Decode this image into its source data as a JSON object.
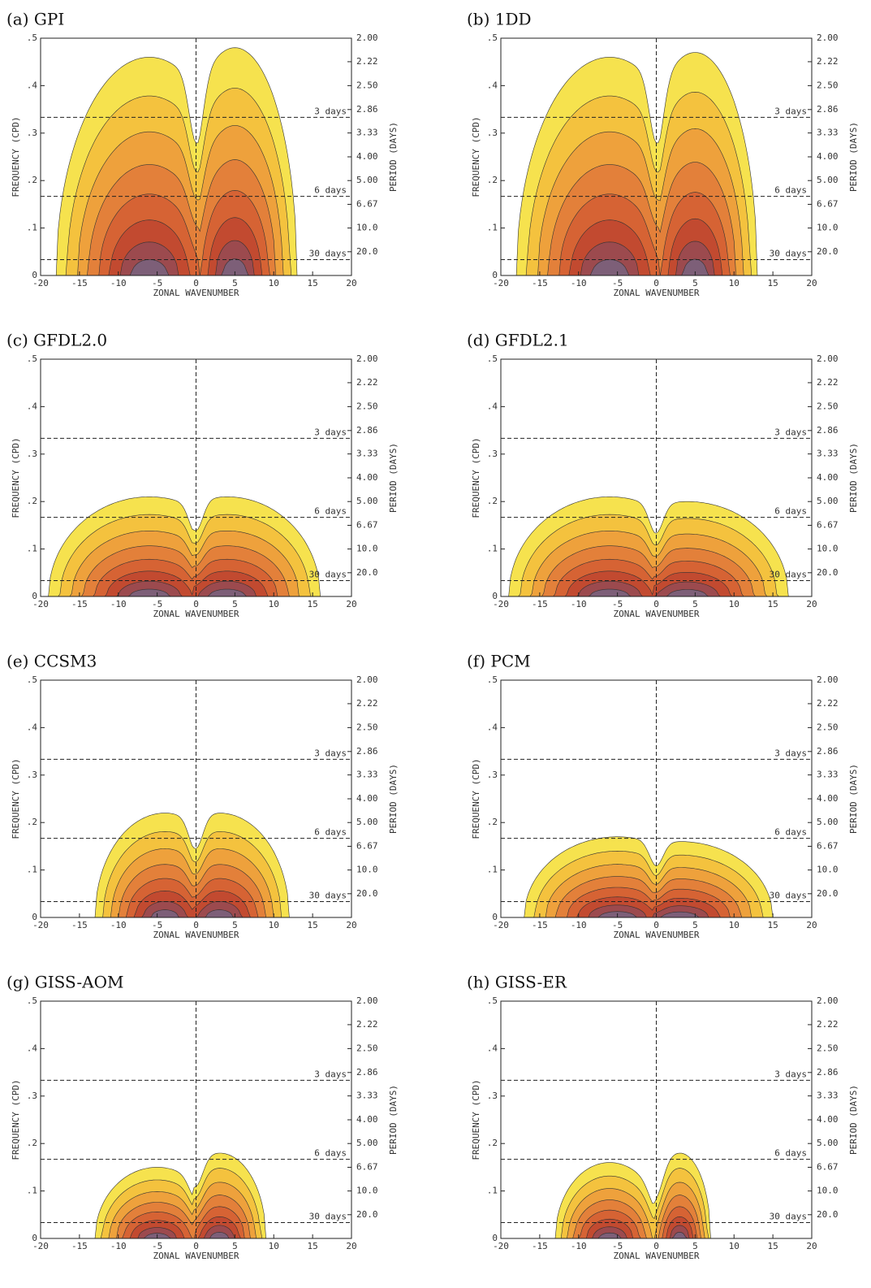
{
  "chart_data": [
    {
      "type": "contour",
      "title": "(a) GPI",
      "xlabel": "ZONAL WAVENUMBER",
      "ylabel": "FREQUENCY (CPD)",
      "y2label": "PERIOD (DAYS)",
      "xlim": [
        -20,
        20
      ],
      "xticks": [
        -20,
        -15,
        -10,
        -5,
        0,
        5,
        10,
        15,
        20
      ],
      "ylim": [
        0,
        0.5
      ],
      "yticks": [
        0,
        {
          "value": 0.1,
          "label": ".1"
        },
        {
          "value": 0.2,
          "label": ".2"
        },
        {
          "value": 0.3,
          "label": ".3"
        },
        {
          "value": 0.4,
          "label": ".4"
        },
        {
          "value": 0.5,
          "label": ".5"
        }
      ],
      "y2scale": "reciprocal",
      "y2ticks": [
        {
          "value": 2,
          "label": "2.00"
        },
        2.22,
        {
          "value": 2.5,
          "label": "2.50"
        },
        2.86,
        3.33,
        {
          "value": 4,
          "label": "4.00"
        },
        {
          "value": 5,
          "label": "5.00"
        },
        6.67,
        {
          "value": 10,
          "label": "10.0"
        },
        {
          "value": 20,
          "label": "20.0"
        }
      ],
      "hlines": [
        {
          "value": 3,
          "label": "3 days"
        },
        {
          "value": 6,
          "label": "6 days"
        },
        {
          "value": 30,
          "label": "30 days"
        }
      ],
      "vline": 0,
      "colors": [
        "#f6e24e",
        "#f4c23e",
        "#eea13c",
        "#e3803a",
        "#d66334",
        "#c24a30",
        "#9c4a4e",
        "#7d5f78"
      ]
    },
    {
      "type": "contour",
      "title": "(b) 1DD",
      "xlabel": "ZONAL WAVENUMBER",
      "ylabel": "FREQUENCY (CPD)",
      "y2label": "PERIOD (DAYS)",
      "xlim": [
        -20,
        20
      ],
      "xticks": [
        -20,
        -15,
        -10,
        -5,
        0,
        5,
        10,
        15,
        20
      ],
      "ylim": [
        0,
        0.5
      ],
      "yticks": [
        0,
        {
          "value": 0.1,
          "label": ".1"
        },
        {
          "value": 0.2,
          "label": ".2"
        },
        {
          "value": 0.3,
          "label": ".3"
        },
        {
          "value": 0.4,
          "label": ".4"
        },
        {
          "value": 0.5,
          "label": ".5"
        }
      ],
      "y2scale": "reciprocal",
      "y2ticks": [
        {
          "value": 2,
          "label": "2.00"
        },
        2.22,
        {
          "value": 2.5,
          "label": "2.50"
        },
        2.86,
        3.33,
        {
          "value": 4,
          "label": "4.00"
        },
        {
          "value": 5,
          "label": "5.00"
        },
        6.67,
        {
          "value": 10,
          "label": "10.0"
        },
        {
          "value": 20,
          "label": "20.0"
        }
      ],
      "hlines": [
        {
          "value": 3,
          "label": "3 days"
        },
        {
          "value": 6,
          "label": "6 days"
        },
        {
          "value": 30,
          "label": "30 days"
        }
      ],
      "vline": 0,
      "colors": [
        "#f6e24e",
        "#f4c23e",
        "#eea13c",
        "#e3803a",
        "#d66334",
        "#c24a30",
        "#9c4a4e",
        "#7d5f78"
      ]
    },
    {
      "type": "contour",
      "title": "(c) GFDL2.0",
      "xlabel": "ZONAL WAVENUMBER",
      "ylabel": "FREQUENCY (CPD)",
      "y2label": "PERIOD (DAYS)",
      "xlim": [
        -20,
        20
      ],
      "xticks": [
        -20,
        -15,
        -10,
        -5,
        0,
        5,
        10,
        15,
        20
      ],
      "ylim": [
        0,
        0.5
      ],
      "yticks": [
        0,
        {
          "value": 0.1,
          "label": ".1"
        },
        {
          "value": 0.2,
          "label": ".2"
        },
        {
          "value": 0.3,
          "label": ".3"
        },
        {
          "value": 0.4,
          "label": ".4"
        },
        {
          "value": 0.5,
          "label": ".5"
        }
      ],
      "y2scale": "reciprocal",
      "y2ticks": [
        {
          "value": 2,
          "label": "2.00"
        },
        2.22,
        {
          "value": 2.5,
          "label": "2.50"
        },
        2.86,
        3.33,
        {
          "value": 4,
          "label": "4.00"
        },
        {
          "value": 5,
          "label": "5.00"
        },
        6.67,
        {
          "value": 10,
          "label": "10.0"
        },
        {
          "value": 20,
          "label": "20.0"
        }
      ],
      "hlines": [
        {
          "value": 3,
          "label": "3 days"
        },
        {
          "value": 6,
          "label": "6 days"
        },
        {
          "value": 30,
          "label": "30 days"
        }
      ],
      "vline": 0,
      "colors": [
        "#f6e24e",
        "#f4c23e",
        "#eea13c",
        "#e3803a",
        "#d66334",
        "#c24a30",
        "#9c4a4e",
        "#7d5f78"
      ]
    },
    {
      "type": "contour",
      "title": "(d) GFDL2.1",
      "xlabel": "ZONAL WAVENUMBER",
      "ylabel": "FREQUENCY (CPD)",
      "y2label": "PERIOD (DAYS)",
      "xlim": [
        -20,
        20
      ],
      "xticks": [
        -20,
        -15,
        -10,
        -5,
        0,
        5,
        10,
        15,
        20
      ],
      "ylim": [
        0,
        0.5
      ],
      "yticks": [
        0,
        {
          "value": 0.1,
          "label": ".1"
        },
        {
          "value": 0.2,
          "label": ".2"
        },
        {
          "value": 0.3,
          "label": ".3"
        },
        {
          "value": 0.4,
          "label": ".4"
        },
        {
          "value": 0.5,
          "label": ".5"
        }
      ],
      "y2scale": "reciprocal",
      "y2ticks": [
        {
          "value": 2,
          "label": "2.00"
        },
        2.22,
        {
          "value": 2.5,
          "label": "2.50"
        },
        2.86,
        3.33,
        {
          "value": 4,
          "label": "4.00"
        },
        {
          "value": 5,
          "label": "5.00"
        },
        6.67,
        {
          "value": 10,
          "label": "10.0"
        },
        {
          "value": 20,
          "label": "20.0"
        }
      ],
      "hlines": [
        {
          "value": 3,
          "label": "3 days"
        },
        {
          "value": 6,
          "label": "6 days"
        },
        {
          "value": 30,
          "label": "30 days"
        }
      ],
      "vline": 0,
      "colors": [
        "#f6e24e",
        "#f4c23e",
        "#eea13c",
        "#e3803a",
        "#d66334",
        "#c24a30",
        "#9c4a4e",
        "#7d5f78"
      ]
    },
    {
      "type": "contour",
      "title": "(e) CCSM3",
      "xlabel": "ZONAL WAVENUMBER",
      "ylabel": "FREQUENCY (CPD)",
      "y2label": "PERIOD (DAYS)",
      "xlim": [
        -20,
        20
      ],
      "xticks": [
        -20,
        -15,
        -10,
        -5,
        0,
        5,
        10,
        15,
        20
      ],
      "ylim": [
        0,
        0.5
      ],
      "yticks": [
        0,
        {
          "value": 0.1,
          "label": ".1"
        },
        {
          "value": 0.2,
          "label": ".2"
        },
        {
          "value": 0.3,
          "label": ".3"
        },
        {
          "value": 0.4,
          "label": ".4"
        },
        {
          "value": 0.5,
          "label": ".5"
        }
      ],
      "y2scale": "reciprocal",
      "y2ticks": [
        {
          "value": 2,
          "label": "2.00"
        },
        2.22,
        {
          "value": 2.5,
          "label": "2.50"
        },
        2.86,
        3.33,
        {
          "value": 4,
          "label": "4.00"
        },
        {
          "value": 5,
          "label": "5.00"
        },
        6.67,
        {
          "value": 10,
          "label": "10.0"
        },
        {
          "value": 20,
          "label": "20.0"
        }
      ],
      "hlines": [
        {
          "value": 3,
          "label": "3 days"
        },
        {
          "value": 6,
          "label": "6 days"
        },
        {
          "value": 30,
          "label": "30 days"
        }
      ],
      "vline": 0,
      "colors": [
        "#f6e24e",
        "#f4c23e",
        "#eea13c",
        "#e3803a",
        "#d66334",
        "#c24a30",
        "#9c4a4e",
        "#7d5f78"
      ]
    },
    {
      "type": "contour",
      "title": "(f) PCM",
      "xlabel": "ZONAL WAVENUMBER",
      "ylabel": "FREQUENCY (CPD)",
      "y2label": "PERIOD (DAYS)",
      "xlim": [
        -20,
        20
      ],
      "xticks": [
        -20,
        -15,
        -10,
        -5,
        0,
        5,
        10,
        15,
        20
      ],
      "ylim": [
        0,
        0.5
      ],
      "yticks": [
        0,
        {
          "value": 0.1,
          "label": ".1"
        },
        {
          "value": 0.2,
          "label": ".2"
        },
        {
          "value": 0.3,
          "label": ".3"
        },
        {
          "value": 0.4,
          "label": ".4"
        },
        {
          "value": 0.5,
          "label": ".5"
        }
      ],
      "y2scale": "reciprocal",
      "y2ticks": [
        {
          "value": 2,
          "label": "2.00"
        },
        2.22,
        {
          "value": 2.5,
          "label": "2.50"
        },
        2.86,
        3.33,
        {
          "value": 4,
          "label": "4.00"
        },
        {
          "value": 5,
          "label": "5.00"
        },
        6.67,
        {
          "value": 10,
          "label": "10.0"
        },
        {
          "value": 20,
          "label": "20.0"
        }
      ],
      "hlines": [
        {
          "value": 3,
          "label": "3 days"
        },
        {
          "value": 6,
          "label": "6 days"
        },
        {
          "value": 30,
          "label": "30 days"
        }
      ],
      "vline": 0,
      "colors": [
        "#f6e24e",
        "#f4c23e",
        "#eea13c",
        "#e3803a",
        "#d66334",
        "#c24a30",
        "#9c4a4e",
        "#7d5f78"
      ]
    },
    {
      "type": "contour",
      "title": "(g) GISS-AOM",
      "xlabel": "ZONAL WAVENUMBER",
      "ylabel": "FREQUENCY (CPD)",
      "y2label": "PERIOD (DAYS)",
      "xlim": [
        -20,
        20
      ],
      "xticks": [
        -20,
        -15,
        -10,
        -5,
        0,
        5,
        10,
        15,
        20
      ],
      "ylim": [
        0,
        0.5
      ],
      "yticks": [
        0,
        {
          "value": 0.1,
          "label": ".1"
        },
        {
          "value": 0.2,
          "label": ".2"
        },
        {
          "value": 0.3,
          "label": ".3"
        },
        {
          "value": 0.4,
          "label": ".4"
        },
        {
          "value": 0.5,
          "label": ".5"
        }
      ],
      "y2scale": "reciprocal",
      "y2ticks": [
        {
          "value": 2,
          "label": "2.00"
        },
        2.22,
        {
          "value": 2.5,
          "label": "2.50"
        },
        2.86,
        3.33,
        {
          "value": 4,
          "label": "4.00"
        },
        {
          "value": 5,
          "label": "5.00"
        },
        6.67,
        {
          "value": 10,
          "label": "10.0"
        },
        {
          "value": 20,
          "label": "20.0"
        }
      ],
      "hlines": [
        {
          "value": 3,
          "label": "3 days"
        },
        {
          "value": 6,
          "label": "6 days"
        },
        {
          "value": 30,
          "label": "30 days"
        }
      ],
      "vline": 0,
      "colors": [
        "#f6e24e",
        "#f4c23e",
        "#eea13c",
        "#e3803a",
        "#d66334",
        "#c24a30",
        "#9c4a4e",
        "#7d5f78"
      ]
    },
    {
      "type": "contour",
      "title": "(h) GISS-ER",
      "xlabel": "ZONAL WAVENUMBER",
      "ylabel": "FREQUENCY (CPD)",
      "y2label": "PERIOD (DAYS)",
      "xlim": [
        -20,
        20
      ],
      "xticks": [
        -20,
        -15,
        -10,
        -5,
        0,
        5,
        10,
        15,
        20
      ],
      "ylim": [
        0,
        0.5
      ],
      "yticks": [
        0,
        {
          "value": 0.1,
          "label": ".1"
        },
        {
          "value": 0.2,
          "label": ".2"
        },
        {
          "value": 0.3,
          "label": ".3"
        },
        {
          "value": 0.4,
          "label": ".4"
        },
        {
          "value": 0.5,
          "label": ".5"
        }
      ],
      "y2scale": "reciprocal",
      "y2ticks": [
        {
          "value": 2,
          "label": "2.00"
        },
        2.22,
        {
          "value": 2.5,
          "label": "2.50"
        },
        2.86,
        3.33,
        {
          "value": 4,
          "label": "4.00"
        },
        {
          "value": 5,
          "label": "5.00"
        },
        6.67,
        {
          "value": 10,
          "label": "10.0"
        },
        {
          "value": 20,
          "label": "20.0"
        }
      ],
      "hlines": [
        {
          "value": 3,
          "label": "3 days"
        },
        {
          "value": 6,
          "label": "6 days"
        },
        {
          "value": 30,
          "label": "30 days"
        }
      ],
      "vline": 0,
      "colors": [
        "#f6e24e",
        "#f4c23e",
        "#eea13c",
        "#e3803a",
        "#d66334",
        "#c24a30",
        "#9c4a4e",
        "#7d5f78"
      ]
    }
  ]
}
